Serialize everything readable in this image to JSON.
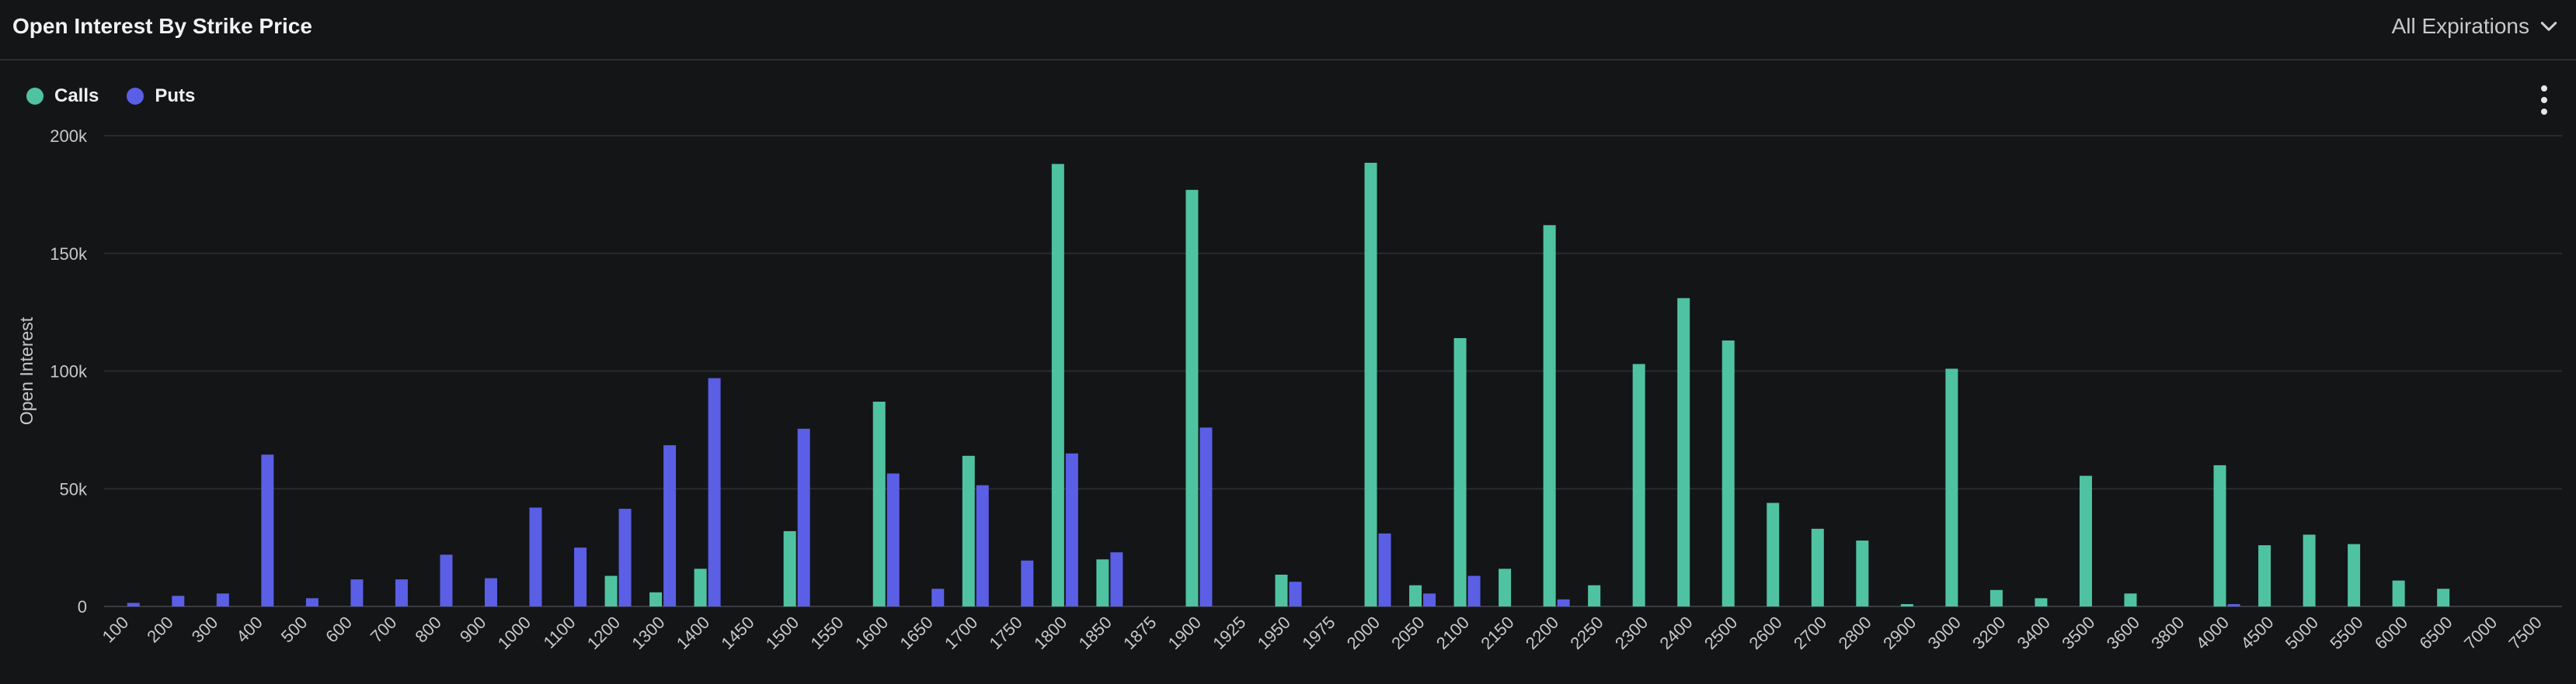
{
  "header": {
    "title": "Open Interest By Strike Price",
    "expiration_select": "All Expirations"
  },
  "legend": {
    "calls_label": "Calls",
    "puts_label": "Puts"
  },
  "colors": {
    "calls": "#4fc3a1",
    "puts": "#5a5fe6",
    "background": "#141517",
    "grid": "#2a2b2f"
  },
  "icons": {
    "dropdown": "chevron-down-icon",
    "menu": "kebab-menu-icon"
  },
  "chart_data": {
    "type": "bar",
    "title": "",
    "xlabel": "",
    "ylabel": "Open Interest",
    "ylim": [
      0,
      200000
    ],
    "yticks": [
      0,
      50000,
      100000,
      150000,
      200000
    ],
    "ytick_labels": [
      "0",
      "50k",
      "100k",
      "150k",
      "200k"
    ],
    "grid": true,
    "legend_position": "top-left",
    "categories": [
      "100",
      "200",
      "300",
      "400",
      "500",
      "600",
      "700",
      "800",
      "900",
      "1000",
      "1100",
      "1200",
      "1300",
      "1400",
      "1450",
      "1500",
      "1550",
      "1600",
      "1650",
      "1700",
      "1750",
      "1800",
      "1850",
      "1875",
      "1900",
      "1925",
      "1950",
      "1975",
      "2000",
      "2050",
      "2100",
      "2150",
      "2200",
      "2250",
      "2300",
      "2400",
      "2500",
      "2600",
      "2700",
      "2800",
      "2900",
      "3000",
      "3200",
      "3400",
      "3500",
      "3600",
      "3800",
      "4000",
      "4500",
      "5000",
      "5500",
      "6000",
      "6500",
      "7000",
      "7500"
    ],
    "series": [
      {
        "name": "Calls",
        "values": [
          0,
          0,
          0,
          0,
          0,
          0,
          0,
          0,
          0,
          0,
          0,
          13000,
          6000,
          16000,
          0,
          32000,
          0,
          87000,
          0,
          64000,
          0,
          188000,
          20000,
          0,
          177000,
          0,
          13500,
          0,
          188500,
          9000,
          114000,
          16000,
          162000,
          9000,
          103000,
          131000,
          113000,
          44000,
          33000,
          28000,
          1000,
          101000,
          7000,
          3500,
          55500,
          5500,
          0,
          60000,
          26000,
          30500,
          26500,
          11000,
          7500,
          0,
          0
        ]
      },
      {
        "name": "Puts",
        "values": [
          1500,
          4500,
          5500,
          64500,
          3500,
          11500,
          11500,
          22000,
          12000,
          42000,
          25000,
          41500,
          68500,
          97000,
          0,
          75500,
          0,
          56500,
          7500,
          51500,
          19500,
          65000,
          23000,
          0,
          76000,
          0,
          10500,
          0,
          31000,
          5500,
          13000,
          0,
          3000,
          0,
          0,
          0,
          0,
          0,
          0,
          0,
          0,
          0,
          0,
          0,
          0,
          0,
          0,
          1000,
          0,
          0,
          0,
          0,
          0,
          0,
          0
        ]
      }
    ]
  }
}
